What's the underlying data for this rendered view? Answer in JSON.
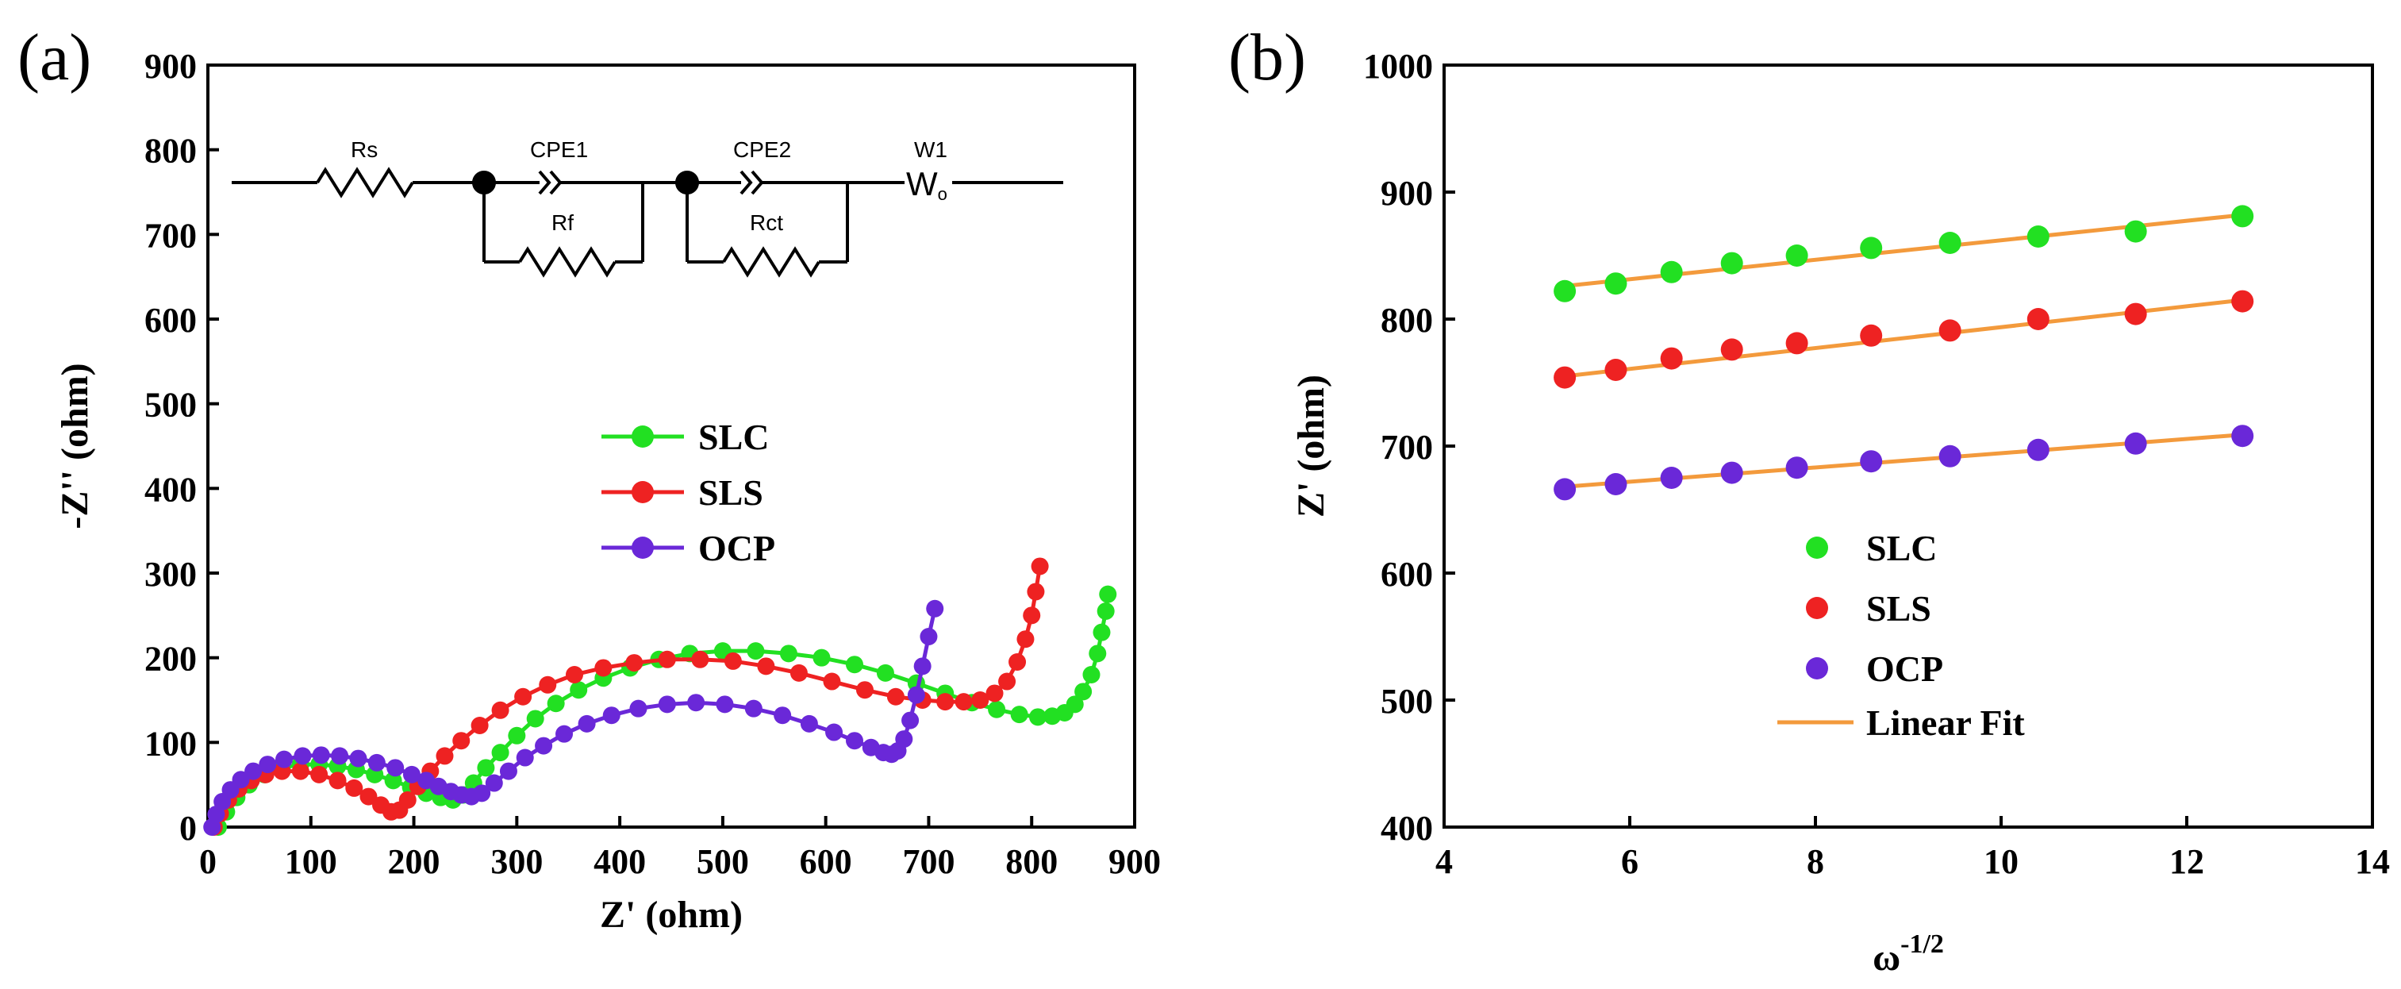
{
  "panels": {
    "a": {
      "label": "(a)"
    },
    "b": {
      "label": "(b)"
    }
  },
  "circuit": {
    "labels": {
      "rs": "Rs",
      "cpe1": "CPE1",
      "rf": "Rf",
      "cpe2": "CPE2",
      "rct": "Rct",
      "w1": "W1",
      "w1_symbol": "W",
      "w1_sub": "o"
    }
  },
  "chart_data": [
    {
      "id": "nyquist",
      "type": "scatter",
      "title": "",
      "xlabel": "Z' (ohm)",
      "ylabel": "-Z'' (ohm)",
      "xlim": [
        0,
        900
      ],
      "ylim": [
        0,
        900
      ],
      "xticks": [
        "0",
        "100",
        "200",
        "300",
        "400",
        "500",
        "600",
        "700",
        "800",
        "900"
      ],
      "yticks": [
        "0",
        "100",
        "200",
        "300",
        "400",
        "500",
        "600",
        "700",
        "800",
        "900"
      ],
      "grid": false,
      "legend": {
        "placement": "center-left"
      },
      "series": [
        {
          "name": "SLC",
          "color": "#22e022",
          "markers": "filled-circle-with-line",
          "x": [
            10,
            18,
            28,
            40,
            55,
            72,
            90,
            108,
            126,
            144,
            162,
            180,
            197,
            212,
            226,
            238,
            248,
            258,
            270,
            284,
            300,
            318,
            338,
            360,
            384,
            410,
            438,
            468,
            500,
            532,
            564,
            596,
            628,
            658,
            688,
            716,
            742,
            766,
            788,
            806,
            820,
            832,
            842,
            850,
            858,
            864,
            868,
            872,
            874
          ],
          "y": [
            0,
            18,
            35,
            50,
            62,
            70,
            74,
            74,
            72,
            68,
            62,
            55,
            47,
            40,
            35,
            32,
            38,
            52,
            70,
            88,
            108,
            128,
            146,
            162,
            176,
            188,
            198,
            205,
            208,
            208,
            205,
            200,
            192,
            182,
            170,
            158,
            147,
            139,
            133,
            130,
            131,
            135,
            145,
            160,
            180,
            205,
            230,
            255,
            275
          ]
        },
        {
          "name": "SLS",
          "color": "#ee2222",
          "markers": "filled-circle-with-line",
          "x": [
            6,
            12,
            20,
            30,
            42,
            56,
            72,
            90,
            108,
            126,
            142,
            156,
            168,
            178,
            186,
            194,
            204,
            216,
            230,
            246,
            264,
            284,
            306,
            330,
            356,
            384,
            414,
            446,
            478,
            510,
            542,
            574,
            606,
            638,
            668,
            694,
            716,
            734,
            750,
            764,
            776,
            786,
            794,
            800,
            804,
            808
          ],
          "y": [
            0,
            16,
            32,
            45,
            55,
            62,
            66,
            66,
            62,
            55,
            46,
            36,
            26,
            18,
            20,
            32,
            48,
            66,
            84,
            102,
            120,
            138,
            154,
            168,
            180,
            188,
            194,
            198,
            198,
            196,
            190,
            182,
            172,
            162,
            154,
            150,
            148,
            148,
            150,
            158,
            172,
            195,
            222,
            250,
            278,
            308
          ]
        },
        {
          "name": "OCP",
          "color": "#6a28d8",
          "markers": "filled-circle-with-line",
          "x": [
            4,
            8,
            14,
            22,
            32,
            44,
            58,
            74,
            92,
            110,
            128,
            146,
            164,
            182,
            198,
            212,
            224,
            236,
            246,
            256,
            266,
            278,
            292,
            308,
            326,
            346,
            368,
            392,
            418,
            446,
            474,
            502,
            530,
            558,
            584,
            608,
            628,
            644,
            656,
            664,
            670,
            676,
            682,
            688,
            694,
            700,
            706
          ],
          "y": [
            0,
            15,
            30,
            44,
            56,
            66,
            74,
            80,
            84,
            85,
            84,
            81,
            76,
            70,
            62,
            55,
            48,
            42,
            38,
            36,
            40,
            52,
            66,
            82,
            96,
            110,
            122,
            132,
            140,
            145,
            147,
            145,
            140,
            132,
            122,
            112,
            102,
            94,
            88,
            86,
            90,
            104,
            126,
            156,
            190,
            225,
            258
          ]
        }
      ]
    },
    {
      "id": "warburg",
      "type": "scatter",
      "title": "",
      "xlabel": "ω-1/2",
      "xlabel_base": "ω",
      "xlabel_sup": "-1/2",
      "ylabel": "Z' (ohm)",
      "xlim": [
        4,
        14
      ],
      "ylim": [
        400,
        1000
      ],
      "xticks": [
        "4",
        "6",
        "8",
        "10",
        "12",
        "14"
      ],
      "yticks": [
        "400",
        "500",
        "600",
        "700",
        "800",
        "900",
        "1000"
      ],
      "grid": false,
      "legend": {
        "placement": "lower-center"
      },
      "x": [
        5.3,
        5.85,
        6.45,
        7.1,
        7.8,
        8.6,
        9.45,
        10.4,
        11.45,
        12.6
      ],
      "series": [
        {
          "name": "SLC",
          "color": "#22e022",
          "y": [
            822,
            828,
            837,
            844,
            850,
            856,
            860,
            865,
            869,
            881
          ]
        },
        {
          "name": "SLS",
          "color": "#ee2222",
          "y": [
            754,
            760,
            769,
            776,
            781,
            787,
            791,
            800,
            804,
            814
          ]
        },
        {
          "name": "OCP",
          "color": "#6a28d8",
          "y": [
            666,
            670,
            675,
            679,
            683,
            688,
            692,
            697,
            702,
            708
          ]
        }
      ],
      "fits": [
        {
          "series": "SLC",
          "x": [
            5.3,
            12.6
          ],
          "y": [
            826,
            882
          ]
        },
        {
          "series": "SLS",
          "x": [
            5.3,
            12.6
          ],
          "y": [
            755,
            815
          ]
        },
        {
          "series": "OCP",
          "x": [
            5.3,
            12.6
          ],
          "y": [
            668,
            709
          ]
        }
      ],
      "fit_legend": {
        "name": "Linear Fit",
        "color": "#f39a3c"
      }
    }
  ]
}
